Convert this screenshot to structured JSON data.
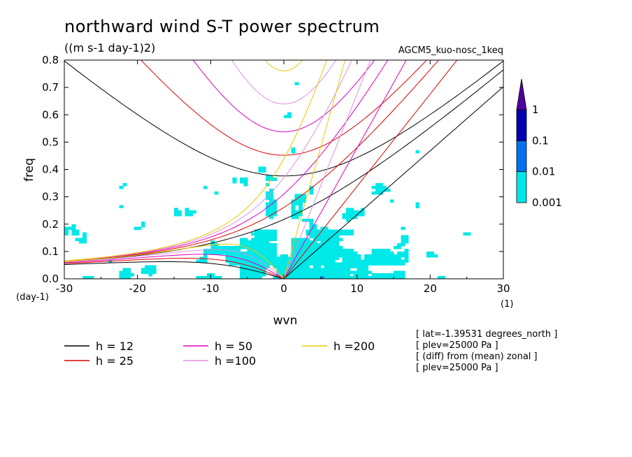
{
  "chart_data": {
    "type": "heatmap",
    "title": "northward wind S-T power spectrum",
    "subtitle": "((m s-1 day-1)2)",
    "run_label": "AGCM5_kuo-nosc_1keq",
    "xlabel": "wvn",
    "ylabel": "freq",
    "y_unit_label": "(day-1)",
    "x_unit_label": "(1)",
    "xlim": [
      -30,
      30
    ],
    "ylim": [
      0,
      0.8
    ],
    "x_ticks": [
      -30,
      -20,
      -10,
      0,
      10,
      20,
      30
    ],
    "x_tick_labels": [
      "-30",
      "-20",
      "-10",
      "0",
      "10",
      "20",
      "30"
    ],
    "y_ticks": [
      0,
      0.1,
      0.2,
      0.3,
      0.4,
      0.5,
      0.6,
      0.7,
      0.8
    ],
    "y_tick_labels": [
      "0.0",
      "0.1",
      "0.2",
      "0.3",
      "0.4",
      "0.5",
      "0.6",
      "0.7",
      "0.8"
    ],
    "grid": false,
    "colorbar": {
      "levels": [
        0.001,
        0.01,
        0.1,
        1
      ],
      "labels": [
        "0.001",
        "0.01",
        "0.1",
        "1"
      ],
      "colors": [
        "#00e8e8",
        "#0070f0",
        "#0000b4",
        "#5000a0"
      ]
    },
    "dispersion_curves": [
      {
        "label": "h = 12",
        "h": 12,
        "color": "#000000"
      },
      {
        "label": "h = 25",
        "h": 25,
        "color": "#e00000"
      },
      {
        "label": "h = 50",
        "h": 50,
        "color": "#e000c0"
      },
      {
        "label": "h =100",
        "h": 100,
        "color": "#e090e0"
      },
      {
        "label": "h =200",
        "h": 200,
        "color": "#e8c800"
      }
    ],
    "legend_placement": "bottom-left",
    "info_lines": [
      "[ lat=-1.39531 degrees_north ]",
      "[ plev=25000 Pa ]",
      "[ (diff) from (mean) zonal ]",
      "[ plev=25000 Pa ]"
    ]
  }
}
